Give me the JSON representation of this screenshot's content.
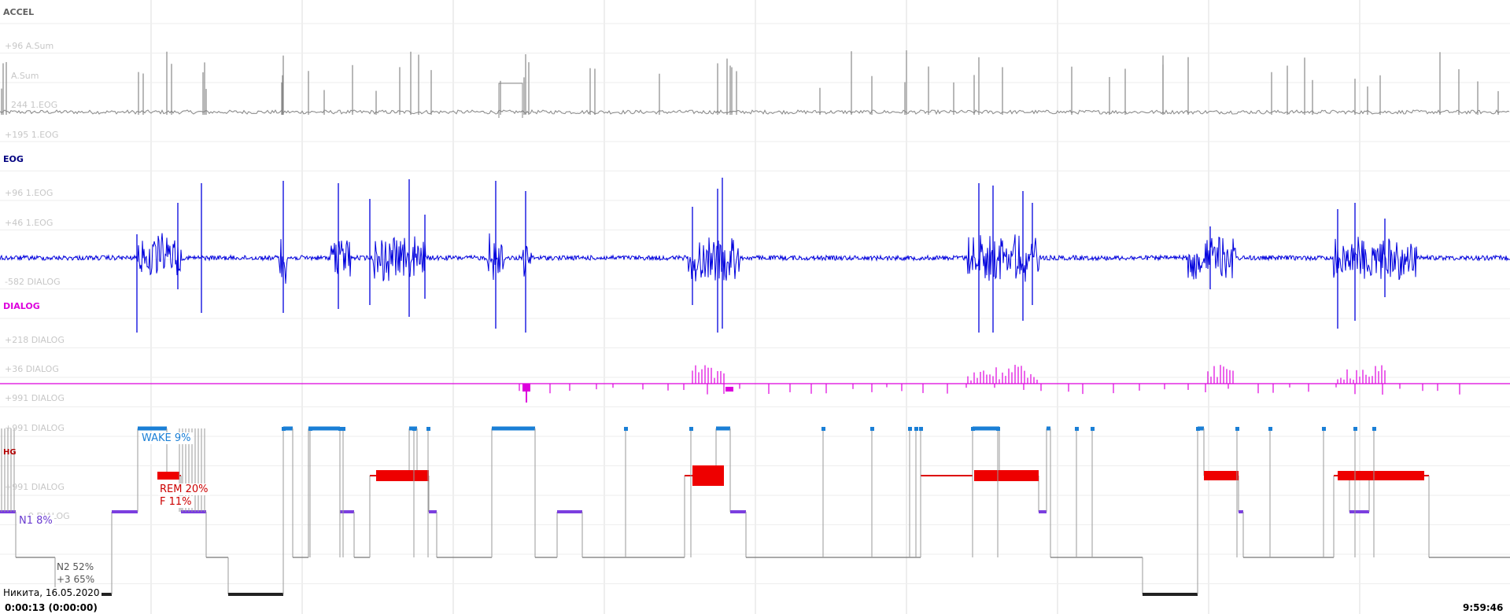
{
  "channels": {
    "accel": {
      "name": "ACCEL",
      "color": "#808080"
    },
    "eog": {
      "name": "EOG",
      "color": "#0000cc"
    },
    "dialog": {
      "name": "DIALOG",
      "color": "#dd00dd"
    },
    "hg": {
      "name": "HG",
      "color": "#b00000"
    }
  },
  "scale_labels": [
    "+96 A.Sum",
    "A.Sum",
    "244 1.EOG",
    "+195 1.EOG",
    "+96 1.EOG",
    "+46 1.EOG",
    "-582 DIALOG",
    "+218 DIALOG",
    "+36 DIALOG",
    "+991 DIALOG",
    "+991 DIALOG",
    "+991 DIALOG",
    "9 DIALOG"
  ],
  "hypnogram": {
    "wake": {
      "label": "WAKE 9%",
      "color": "#1a7fd6"
    },
    "rem": {
      "label": "REM 20%",
      "color": "#dd0000"
    },
    "f": {
      "label": "F 11%",
      "color": "#dd0000"
    },
    "n1": {
      "label": "N1 8%",
      "color": "#7b3fe0"
    },
    "n2": {
      "label": "N2 52%",
      "color": "#555555"
    },
    "n3": {
      "label": "+3 65%",
      "color": "#333333"
    }
  },
  "footer": {
    "patient": "Никита, 16.05.2020",
    "start_time": "0:00:13 (0:00:00)",
    "end_time": "9:59:46"
  }
}
